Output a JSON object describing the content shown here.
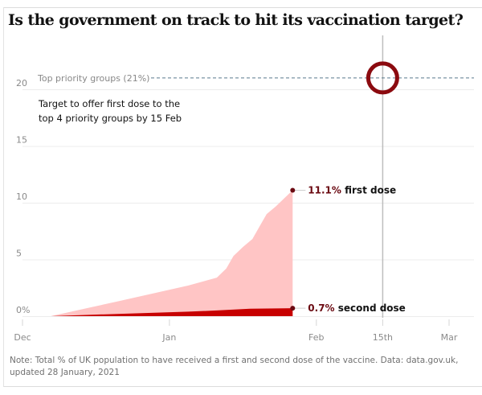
{
  "title": "Is the government on track to hit its vaccination target?",
  "target_note": "Target to offer first dose to the top 4 priority groups by 15 Feb",
  "note": "Note: Total % of UK population to have received a first and second dose of the vaccine. Data: data.gov.uk, updated 28 January, 2021",
  "colors": {
    "first_dose_fill": "#ffc5c5",
    "second_dose_fill": "#c70000",
    "marker": "#6b0a12",
    "target_circle": "#8b0a0f",
    "target_line": "#5a7a8c",
    "gridline": "#ececec"
  },
  "chart_data": {
    "type": "area",
    "title": "Is the government on track to hit its vaccination target?",
    "xlabel": "",
    "ylabel": "% of UK population",
    "x_unit": "days since 1 Dec 2020",
    "xlim": [
      0,
      90
    ],
    "ylim": [
      0,
      22
    ],
    "grid": true,
    "y_ticks": [
      {
        "value": 0,
        "label": "0%"
      },
      {
        "value": 5,
        "label": "5"
      },
      {
        "value": 10,
        "label": "10"
      },
      {
        "value": 15,
        "label": "15"
      },
      {
        "value": 20,
        "label": "20"
      }
    ],
    "x_ticks": [
      {
        "value": 0,
        "label": "Dec"
      },
      {
        "value": 31,
        "label": "Jan"
      },
      {
        "value": 62,
        "label": "Feb"
      },
      {
        "value": 76,
        "label": "15th"
      },
      {
        "value": 90,
        "label": "Mar"
      }
    ],
    "series": [
      {
        "name": "first dose",
        "end_label_value": "11.1%",
        "end_label_text": "first dose",
        "x": [
          6,
          20,
          35,
          41,
          43,
          44.5,
          46.5,
          48.5,
          50,
          51.5,
          53.5,
          55,
          57
        ],
        "y": [
          0,
          1.3,
          2.7,
          3.4,
          4.2,
          5.3,
          6.1,
          6.8,
          7.9,
          9.0,
          9.7,
          10.3,
          11.1
        ]
      },
      {
        "name": "second dose",
        "end_label_value": "0.7%",
        "end_label_text": "second dose",
        "x": [
          6,
          20,
          35,
          41,
          48,
          57
        ],
        "y": [
          0,
          0.2,
          0.4,
          0.5,
          0.65,
          0.7
        ]
      }
    ],
    "annotations": [
      {
        "type": "hline",
        "value": 21,
        "label": "Top priority groups (21%)",
        "style": "dashed"
      },
      {
        "type": "vline",
        "value": 76,
        "label": "15th"
      },
      {
        "type": "target-circle",
        "x": 76,
        "y": 21
      },
      {
        "type": "text",
        "text": "Target to offer first dose to the top 4 priority groups by 15 Feb"
      }
    ]
  }
}
